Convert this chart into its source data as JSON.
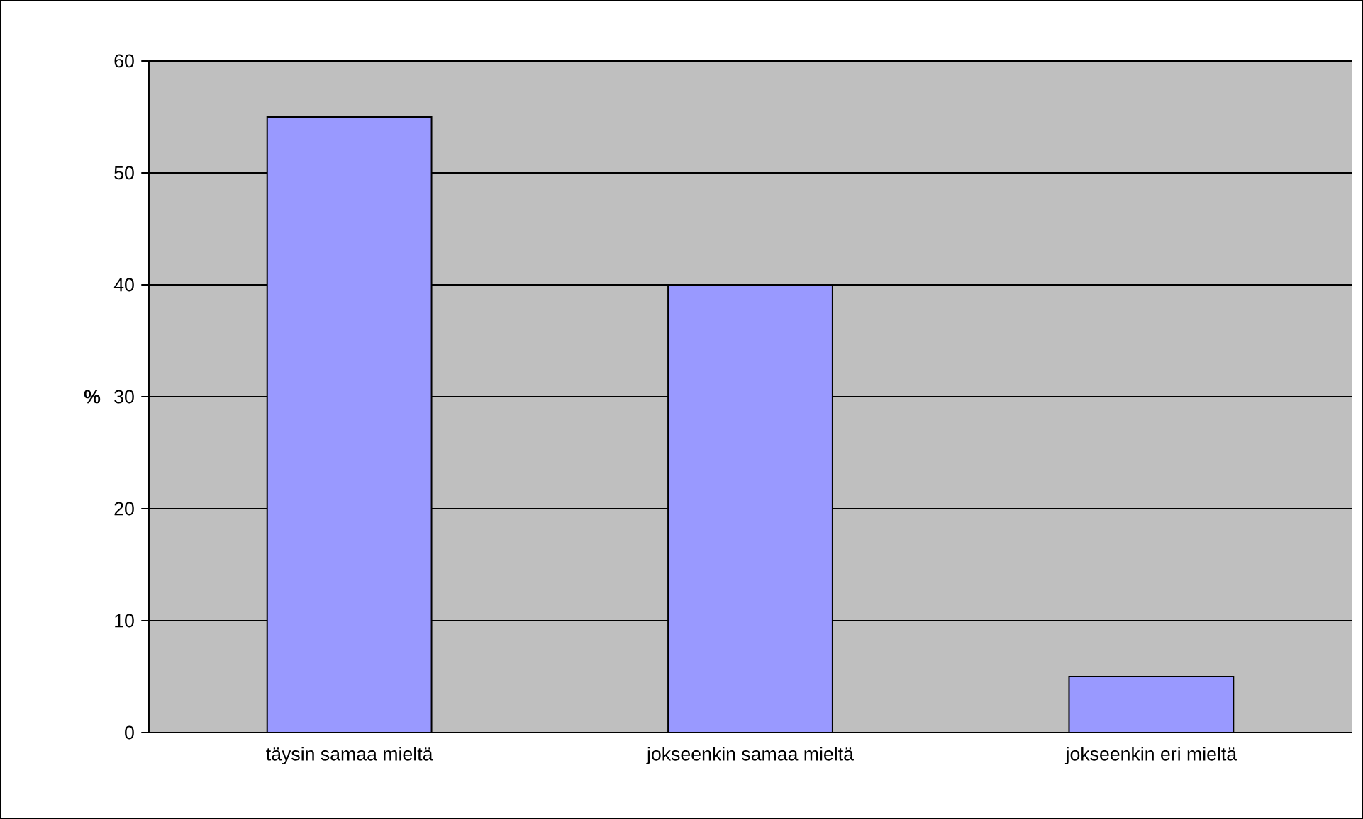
{
  "chart_data": {
    "type": "bar",
    "ylabel": "%",
    "categories": [
      "täysin samaa mieltä",
      "jokseenkin samaa mieltä",
      "jokseenkin eri mieltä"
    ],
    "values": [
      55,
      40,
      5
    ],
    "color": "#9999ff",
    "ylim": [
      0,
      60
    ],
    "yticks": [
      0,
      10,
      20,
      30,
      40,
      50,
      60
    ],
    "grid": "y"
  }
}
